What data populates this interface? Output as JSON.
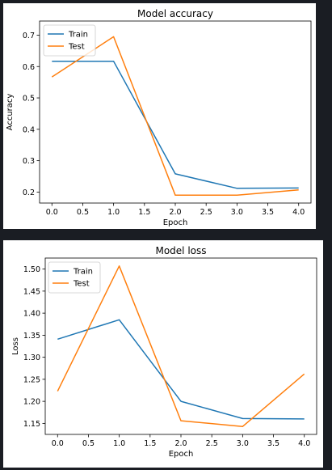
{
  "page_background": "#1a1d23",
  "chart_data": [
    {
      "type": "line",
      "title": "Model accuracy",
      "xlabel": "Epoch",
      "ylabel": "Accuracy",
      "x": [
        0,
        1,
        2,
        3,
        4
      ],
      "series": [
        {
          "name": "Train",
          "color": "#1f77b4",
          "values": [
            0.617,
            0.617,
            0.258,
            0.212,
            0.213
          ]
        },
        {
          "name": "Test",
          "color": "#ff7f0e",
          "values": [
            0.567,
            0.695,
            0.19,
            0.19,
            0.207
          ]
        }
      ],
      "xlim": [
        -0.2,
        4.2
      ],
      "ylim": [
        0.165,
        0.745
      ],
      "xticks": [
        "0.0",
        "0.5",
        "1.0",
        "1.5",
        "2.0",
        "2.5",
        "3.0",
        "3.5",
        "4.0"
      ],
      "yticks": [
        "0.2",
        "0.3",
        "0.4",
        "0.5",
        "0.6",
        "0.7"
      ],
      "legend_position": "upper-left",
      "grid": false
    },
    {
      "type": "line",
      "title": "Model loss",
      "xlabel": "Epoch",
      "ylabel": "Loss",
      "x": [
        0,
        1,
        2,
        3,
        4
      ],
      "series": [
        {
          "name": "Train",
          "color": "#1f77b4",
          "values": [
            1.341,
            1.385,
            1.2,
            1.161,
            1.16
          ]
        },
        {
          "name": "Test",
          "color": "#ff7f0e",
          "values": [
            1.223,
            1.507,
            1.156,
            1.143,
            1.262
          ]
        }
      ],
      "xlim": [
        -0.2,
        4.2
      ],
      "ylim": [
        1.125,
        1.525
      ],
      "xticks": [
        "0.0",
        "0.5",
        "1.0",
        "1.5",
        "2.0",
        "2.5",
        "3.0",
        "3.5",
        "4.0"
      ],
      "yticks": [
        "1.15",
        "1.20",
        "1.25",
        "1.30",
        "1.35",
        "1.40",
        "1.45",
        "1.50"
      ],
      "legend_position": "upper-left",
      "grid": false
    }
  ]
}
